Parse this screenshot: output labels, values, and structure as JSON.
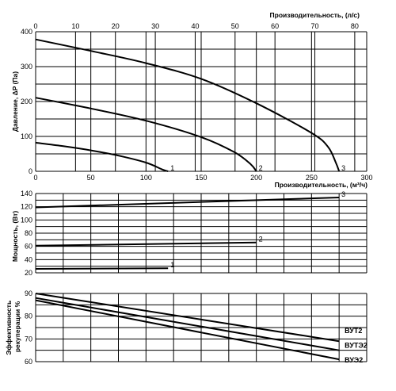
{
  "chart_data": [
    {
      "type": "line",
      "top_axis": {
        "label": "Производительность, (л/с)",
        "ticks": [
          0,
          10,
          20,
          30,
          40,
          50,
          60,
          70,
          80
        ]
      },
      "bottom_axis": {
        "label": "Производительность, (м³/ч)",
        "ticks": [
          0,
          50,
          100,
          150,
          200,
          250,
          300
        ]
      },
      "ylabel": "Давление, ΔP (Па)",
      "yticks": [
        0,
        100,
        200,
        300,
        400
      ],
      "xlim": [
        0,
        300
      ],
      "ylim": [
        0,
        400
      ],
      "series": [
        {
          "name": "1",
          "x": [
            0,
            25,
            50,
            75,
            100,
            115,
            120
          ],
          "y": [
            82,
            72,
            60,
            45,
            25,
            5,
            0
          ]
        },
        {
          "name": "2",
          "x": [
            0,
            50,
            100,
            150,
            180,
            195,
            200
          ],
          "y": [
            211,
            180,
            145,
            98,
            55,
            20,
            0
          ]
        },
        {
          "name": "3",
          "x": [
            0,
            50,
            100,
            150,
            200,
            250,
            265,
            272,
            275
          ],
          "y": [
            378,
            345,
            310,
            265,
            195,
            110,
            70,
            25,
            0
          ]
        }
      ]
    },
    {
      "type": "line",
      "ylabel": "Мощность, (Вт)",
      "yticks": [
        20,
        40,
        60,
        80,
        100,
        120,
        140
      ],
      "ylim": [
        20,
        140
      ],
      "xlim": [
        0,
        300
      ],
      "series": [
        {
          "name": "1",
          "x": [
            0,
            120
          ],
          "y": [
            26,
            27
          ]
        },
        {
          "name": "2",
          "x": [
            0,
            200
          ],
          "y": [
            61,
            66
          ]
        },
        {
          "name": "3",
          "x": [
            0,
            275
          ],
          "y": [
            119,
            134
          ]
        }
      ]
    },
    {
      "type": "line",
      "ylabel": "Эффективность рекуперации %",
      "yticks": [
        60,
        70,
        80,
        90
      ],
      "ylim": [
        60,
        90
      ],
      "xlim": [
        0,
        300
      ],
      "series": [
        {
          "name": "ВУТ2",
          "x": [
            0,
            275
          ],
          "y": [
            90,
            69
          ]
        },
        {
          "name": "ВУТЭ2",
          "x": [
            0,
            275
          ],
          "y": [
            88,
            65
          ]
        },
        {
          "name": "ВУЭ2",
          "x": [
            0,
            275
          ],
          "y": [
            87,
            61
          ]
        }
      ]
    }
  ]
}
